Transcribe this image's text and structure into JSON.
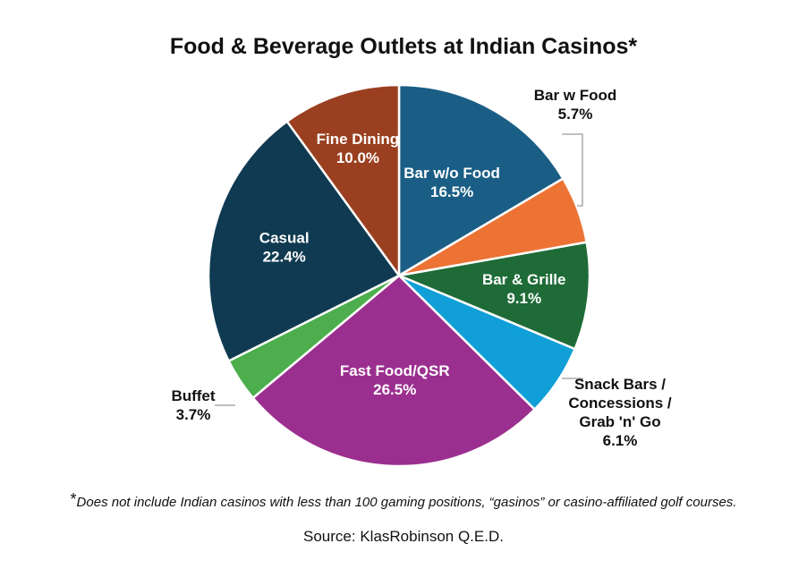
{
  "chart_data": {
    "type": "pie",
    "title": "Food & Beverage Outlets at Indian Casinos*",
    "slices": [
      {
        "label": "Bar w/o Food",
        "value": 16.5,
        "value_label": "16.5%",
        "color": "#1b5e85"
      },
      {
        "label": "Bar w Food",
        "value": 5.7,
        "value_label": "5.7%",
        "color": "#ec7334"
      },
      {
        "label": "Bar & Grille",
        "value": 9.1,
        "value_label": "9.1%",
        "color": "#1f6b38"
      },
      {
        "label": "Snack Bars / Concessions / Grab 'n' Go",
        "value": 6.1,
        "value_label": "6.1%",
        "color": "#119fd8"
      },
      {
        "label": "Fast Food/QSR",
        "value": 26.5,
        "value_label": "26.5%",
        "color": "#9b2f8f"
      },
      {
        "label": "Buffet",
        "value": 3.7,
        "value_label": "3.7%",
        "color": "#4cae4c"
      },
      {
        "label": "Casual",
        "value": 22.4,
        "value_label": "22.4%",
        "color": "#0f3a51"
      },
      {
        "label": "Fine Dining",
        "value": 10.0,
        "value_label": "10.0%",
        "color": "#9a4020"
      }
    ],
    "start_angle": "12 o'clock",
    "direction": "clockwise",
    "legend": "none"
  },
  "footnote": {
    "marker": "*",
    "text": "Does not include Indian casinos with less than 100 gaming positions, “gasinos” or casino-affiliated golf courses."
  },
  "source": "Source: KlasRobinson Q.E.D."
}
